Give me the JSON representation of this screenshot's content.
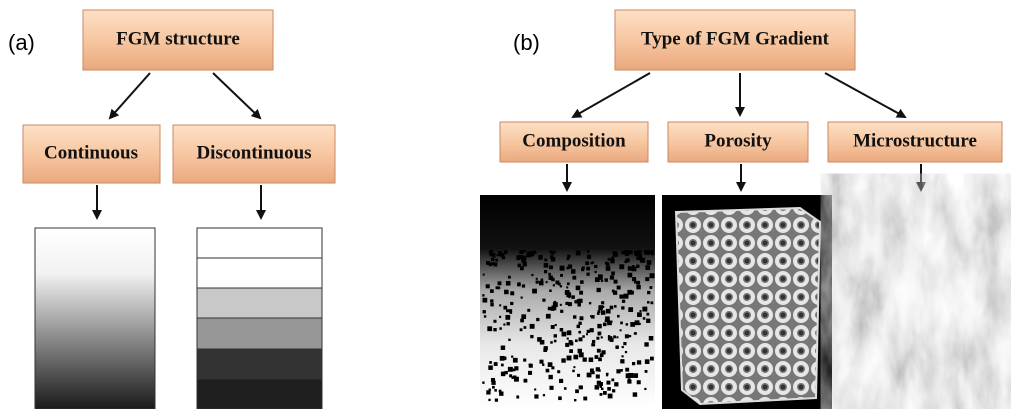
{
  "panel_a": {
    "label": "(a)",
    "root": "FGM structure",
    "children": [
      "Continuous",
      "Discontinuous"
    ]
  },
  "panel_b": {
    "label": "(b)",
    "root": "Type of FGM Gradient",
    "children": [
      "Composition",
      "Porosity",
      "Microstructure"
    ]
  }
}
